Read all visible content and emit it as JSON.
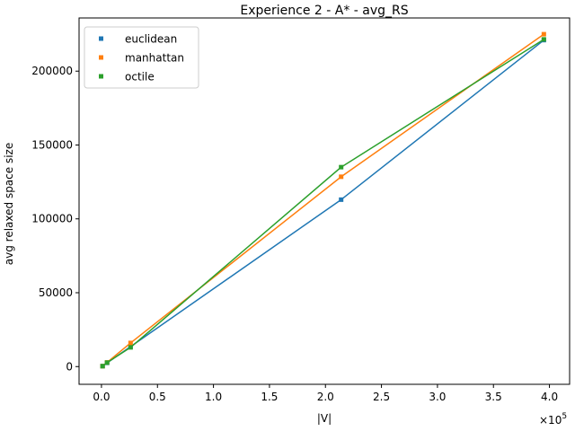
{
  "chart_data": {
    "type": "line",
    "title": "Experience 2 - A* - avg_RS",
    "xlabel": "|V|",
    "ylabel": "avg relaxed space size",
    "x_offset_text": "×10",
    "x_offset_exp": "5",
    "x_scale": 100000,
    "xlim": [
      -0.2,
      4.18
    ],
    "ylim": [
      -12000,
      236000
    ],
    "x_ticks": [
      0.0,
      0.5,
      1.0,
      1.5,
      2.0,
      2.5,
      3.0,
      3.5,
      4.0
    ],
    "x_tick_labels": [
      "0.0",
      "0.5",
      "1.0",
      "1.5",
      "2.0",
      "2.5",
      "3.0",
      "3.5",
      "4.0"
    ],
    "y_ticks": [
      0,
      50000,
      100000,
      150000,
      200000
    ],
    "y_tick_labels": [
      "0",
      "50000",
      "100000",
      "150000",
      "200000"
    ],
    "grid": false,
    "legend_position": "top-left",
    "x": [
      0.01,
      0.05,
      0.26,
      2.14,
      3.95
    ],
    "series": [
      {
        "name": "euclidean",
        "color": "#1f77b4",
        "values": [
          300,
          2500,
          13500,
          113000,
          221000
        ]
      },
      {
        "name": "manhattan",
        "color": "#ff7f0e",
        "values": [
          300,
          2800,
          16000,
          128500,
          225000
        ]
      },
      {
        "name": "octile",
        "color": "#2ca02c",
        "values": [
          300,
          2700,
          13000,
          135000,
          221500
        ]
      }
    ]
  }
}
